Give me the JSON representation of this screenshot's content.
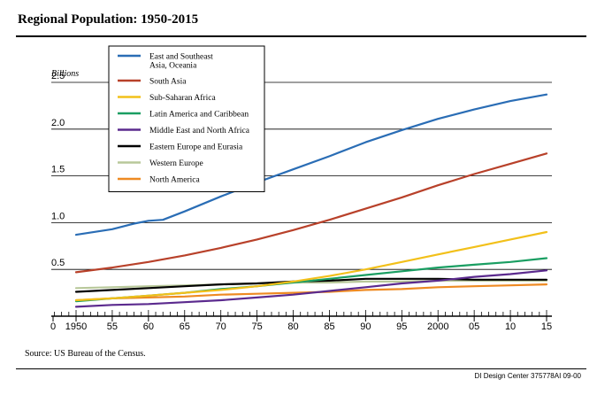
{
  "title": "Regional Population: 1950-2015",
  "source": "Source: US Bureau of the Census.",
  "credit": "DI Design Center  375778AI 09-00",
  "chart_data": {
    "type": "line",
    "ylabel": "Billions",
    "ylim": [
      0,
      2.5
    ],
    "yticks": [
      {
        "v": 0.5,
        "label": "0.5"
      },
      {
        "v": 1.0,
        "label": "1.0"
      },
      {
        "v": 1.5,
        "label": "1.5"
      },
      {
        "v": 2.0,
        "label": "2.0"
      },
      {
        "v": 2.5,
        "label": "2.5"
      }
    ],
    "origin_label": "0",
    "xlim": [
      1950,
      2015
    ],
    "xticks": [
      {
        "v": 1950,
        "label": "1950"
      },
      {
        "v": 1955,
        "label": "55"
      },
      {
        "v": 1960,
        "label": "60"
      },
      {
        "v": 1965,
        "label": "65"
      },
      {
        "v": 1970,
        "label": "70"
      },
      {
        "v": 1975,
        "label": "75"
      },
      {
        "v": 1980,
        "label": "80"
      },
      {
        "v": 1985,
        "label": "85"
      },
      {
        "v": 1990,
        "label": "90"
      },
      {
        "v": 1995,
        "label": "95"
      },
      {
        "v": 2000,
        "label": "2000"
      },
      {
        "v": 2005,
        "label": "05"
      },
      {
        "v": 2010,
        "label": "10"
      },
      {
        "v": 2015,
        "label": "15"
      }
    ],
    "grid": "horizontal",
    "legend_position": "top-left",
    "series": [
      {
        "name": "East and Southeast Asia, Oceania",
        "legend_lines": [
          "East and Southeast",
          "Asia, Oceania"
        ],
        "color": "#2a6db5",
        "x": [
          1950,
          1955,
          1958,
          1960,
          1962,
          1965,
          1970,
          1975,
          1980,
          1985,
          1990,
          1995,
          2000,
          2005,
          2010,
          2015
        ],
        "y": [
          0.87,
          0.93,
          0.99,
          1.02,
          1.03,
          1.12,
          1.28,
          1.43,
          1.57,
          1.71,
          1.86,
          1.99,
          2.11,
          2.21,
          2.3,
          2.37
        ]
      },
      {
        "name": "South Asia",
        "legend_lines": [
          "South Asia"
        ],
        "color": "#b8412a",
        "x": [
          1950,
          1955,
          1960,
          1965,
          1970,
          1975,
          1980,
          1985,
          1990,
          1995,
          2000,
          2005,
          2010,
          2015
        ],
        "y": [
          0.47,
          0.52,
          0.58,
          0.65,
          0.73,
          0.82,
          0.92,
          1.03,
          1.15,
          1.27,
          1.4,
          1.52,
          1.63,
          1.74
        ]
      },
      {
        "name": "Sub-Saharan Africa",
        "legend_lines": [
          "Sub-Saharan Africa"
        ],
        "color": "#f2c01a",
        "x": [
          1950,
          1955,
          1960,
          1965,
          1970,
          1975,
          1980,
          1985,
          1990,
          1995,
          2000,
          2005,
          2010,
          2015
        ],
        "y": [
          0.17,
          0.19,
          0.22,
          0.25,
          0.28,
          0.32,
          0.37,
          0.43,
          0.5,
          0.58,
          0.66,
          0.74,
          0.82,
          0.9
        ]
      },
      {
        "name": "Latin America and Caribbean",
        "legend_lines": [
          "Latin America and Caribbean"
        ],
        "color": "#1a9e62",
        "x": [
          1950,
          1955,
          1960,
          1965,
          1970,
          1975,
          1980,
          1985,
          1990,
          1995,
          2000,
          2005,
          2010,
          2015
        ],
        "y": [
          0.16,
          0.19,
          0.22,
          0.25,
          0.29,
          0.32,
          0.36,
          0.4,
          0.44,
          0.48,
          0.52,
          0.55,
          0.58,
          0.62
        ]
      },
      {
        "name": "Middle East and North Africa",
        "legend_lines": [
          "Middle East and North Africa"
        ],
        "color": "#5b2a8e",
        "x": [
          1950,
          1955,
          1960,
          1965,
          1970,
          1975,
          1980,
          1985,
          1990,
          1995,
          2000,
          2005,
          2010,
          2015
        ],
        "y": [
          0.1,
          0.12,
          0.13,
          0.15,
          0.17,
          0.2,
          0.23,
          0.27,
          0.31,
          0.35,
          0.38,
          0.42,
          0.45,
          0.49
        ]
      },
      {
        "name": "Eastern Europe and Eurasia",
        "legend_lines": [
          "Eastern Europe and Eurasia"
        ],
        "color": "#000000",
        "x": [
          1950,
          1955,
          1960,
          1965,
          1970,
          1975,
          1980,
          1985,
          1990,
          1995,
          2000,
          2005,
          2010,
          2015
        ],
        "y": [
          0.26,
          0.28,
          0.3,
          0.32,
          0.34,
          0.35,
          0.37,
          0.38,
          0.4,
          0.4,
          0.4,
          0.39,
          0.39,
          0.39
        ]
      },
      {
        "name": "Western Europe",
        "legend_lines": [
          "Western Europe"
        ],
        "color": "#b8c89a",
        "x": [
          1950,
          1955,
          1960,
          1965,
          1970,
          1975,
          1980,
          1985,
          1990,
          1995,
          2000,
          2005,
          2010,
          2015
        ],
        "y": [
          0.3,
          0.31,
          0.32,
          0.33,
          0.34,
          0.35,
          0.36,
          0.36,
          0.37,
          0.37,
          0.38,
          0.38,
          0.38,
          0.38
        ]
      },
      {
        "name": "North America",
        "legend_lines": [
          "North America"
        ],
        "color": "#ee8a22",
        "x": [
          1950,
          1955,
          1960,
          1965,
          1970,
          1975,
          1980,
          1985,
          1990,
          1995,
          2000,
          2005,
          2010,
          2015
        ],
        "y": [
          0.17,
          0.19,
          0.2,
          0.21,
          0.23,
          0.24,
          0.25,
          0.26,
          0.28,
          0.29,
          0.31,
          0.32,
          0.33,
          0.34
        ]
      }
    ]
  }
}
